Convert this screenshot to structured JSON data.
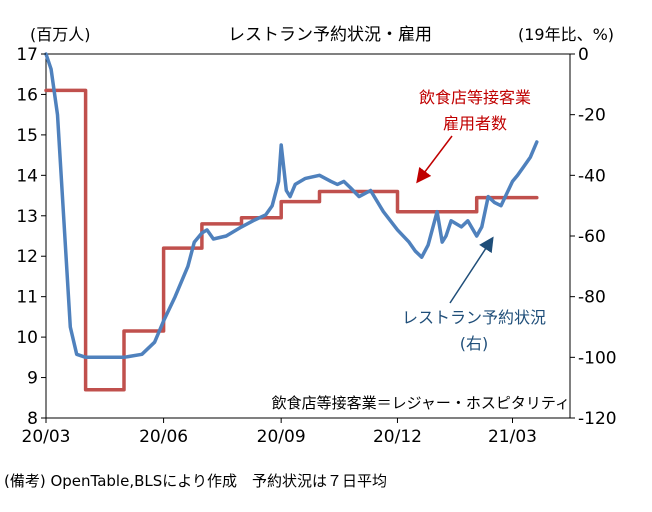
{
  "title": "レストラン予約状況・雇用",
  "footnote": "(備考) OpenTable,BLSにより作成　予約状況は７日平均",
  "chart_data": {
    "type": "line",
    "title": "レストラン予約状況・雇用",
    "left_axis": {
      "unit_label": "(百万人)",
      "range": [
        8,
        17
      ],
      "ticks": [
        "8",
        "9",
        "10",
        "11",
        "12",
        "13",
        "14",
        "15",
        "16",
        "17"
      ]
    },
    "right_axis": {
      "unit_label": "(19年比、%)",
      "range": [
        -120,
        0
      ],
      "ticks": [
        "0",
        "-20",
        "-40",
        "-60",
        "-80",
        "-100",
        "-120"
      ]
    },
    "x_axis": {
      "range": [
        "2020-03-01",
        "2021-04-15"
      ],
      "ticks": [
        {
          "date": "2020-03-01",
          "label": "20/03"
        },
        {
          "date": "2020-06-01",
          "label": "20/06"
        },
        {
          "date": "2020-09-01",
          "label": "20/09"
        },
        {
          "date": "2020-12-01",
          "label": "20/12"
        },
        {
          "date": "2021-03-01",
          "label": "21/03"
        }
      ]
    },
    "annotations": {
      "employment": [
        "飲食店等接客業",
        "雇用者数"
      ],
      "reservations": [
        "レストラン予約状況",
        "(右)"
      ],
      "definition": "飲食店等接客業＝レジャー・ホスピタリティ"
    },
    "series": [
      {
        "name": "飲食店等接客業雇用者数",
        "axis": "left",
        "color": "#c0504d",
        "step": true,
        "x": [
          "2020-03-01",
          "2020-04-01",
          "2020-05-01",
          "2020-06-01",
          "2020-07-01",
          "2020-08-01",
          "2020-09-01",
          "2020-10-01",
          "2020-11-01",
          "2020-12-01",
          "2021-01-01",
          "2021-02-01",
          "2021-03-01"
        ],
        "values": [
          16.1,
          8.7,
          10.15,
          12.2,
          12.8,
          12.95,
          13.35,
          13.6,
          13.6,
          13.1,
          13.1,
          13.45,
          13.45
        ],
        "end": "2021-03-20"
      },
      {
        "name": "レストラン予約状況",
        "axis": "right",
        "color": "#4f81bd",
        "x": [
          "2020-03-01",
          "2020-03-05",
          "2020-03-10",
          "2020-03-15",
          "2020-03-20",
          "2020-03-25",
          "2020-04-01",
          "2020-04-15",
          "2020-05-01",
          "2020-05-15",
          "2020-05-25",
          "2020-06-01",
          "2020-06-10",
          "2020-06-20",
          "2020-06-25",
          "2020-07-01",
          "2020-07-05",
          "2020-07-10",
          "2020-07-20",
          "2020-08-01",
          "2020-08-10",
          "2020-08-20",
          "2020-08-25",
          "2020-08-30",
          "2020-09-01",
          "2020-09-05",
          "2020-09-08",
          "2020-09-12",
          "2020-09-20",
          "2020-10-01",
          "2020-10-10",
          "2020-10-15",
          "2020-10-20",
          "2020-10-25",
          "2020-11-01",
          "2020-11-10",
          "2020-11-20",
          "2020-12-01",
          "2020-12-10",
          "2020-12-15",
          "2020-12-20",
          "2020-12-25",
          "2021-01-01",
          "2021-01-05",
          "2021-01-08",
          "2021-01-12",
          "2021-01-20",
          "2021-01-25",
          "2021-02-01",
          "2021-02-05",
          "2021-02-10",
          "2021-02-15",
          "2021-02-20",
          "2021-03-01",
          "2021-03-05",
          "2021-03-10",
          "2021-03-15",
          "2021-03-20"
        ],
        "values": [
          0,
          -5,
          -20,
          -55,
          -90,
          -99,
          -100,
          -100,
          -100,
          -99,
          -95,
          -88,
          -80,
          -70,
          -62,
          -59,
          -58,
          -61,
          -60,
          -57,
          -55,
          -53,
          -50,
          -42,
          -30,
          -45,
          -47,
          -43,
          -41,
          -40,
          -42,
          -43,
          -42,
          -44,
          -47,
          -45,
          -52,
          -58,
          -62,
          -65,
          -67,
          -63,
          -52,
          -62,
          -60,
          -55,
          -57,
          -55,
          -60,
          -57,
          -47,
          -49,
          -50,
          -42,
          -40,
          -37,
          -34,
          -29
        ]
      }
    ]
  }
}
